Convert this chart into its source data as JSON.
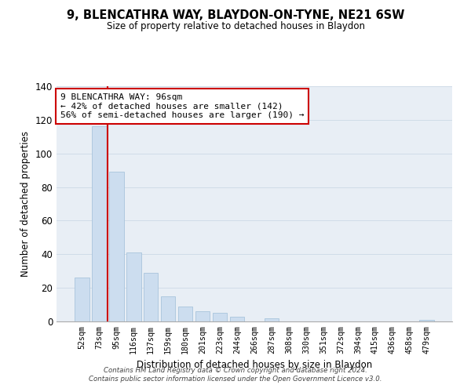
{
  "title": "9, BLENCATHRA WAY, BLAYDON-ON-TYNE, NE21 6SW",
  "subtitle": "Size of property relative to detached houses in Blaydon",
  "xlabel": "Distribution of detached houses by size in Blaydon",
  "ylabel": "Number of detached properties",
  "bar_labels": [
    "52sqm",
    "73sqm",
    "95sqm",
    "116sqm",
    "137sqm",
    "159sqm",
    "180sqm",
    "201sqm",
    "223sqm",
    "244sqm",
    "266sqm",
    "287sqm",
    "308sqm",
    "330sqm",
    "351sqm",
    "372sqm",
    "394sqm",
    "415sqm",
    "436sqm",
    "458sqm",
    "479sqm"
  ],
  "bar_values": [
    26,
    116,
    89,
    41,
    29,
    15,
    9,
    6,
    5,
    3,
    0,
    2,
    0,
    0,
    0,
    0,
    0,
    0,
    0,
    0,
    1
  ],
  "bar_color": "#ccddef",
  "bar_edge_color": "#a8c4dc",
  "vline_color": "#cc0000",
  "vline_x_index": 1.5,
  "ylim": [
    0,
    140
  ],
  "yticks": [
    0,
    20,
    40,
    60,
    80,
    100,
    120,
    140
  ],
  "annotation_title": "9 BLENCATHRA WAY: 96sqm",
  "annotation_line1": "← 42% of detached houses are smaller (142)",
  "annotation_line2": "56% of semi-detached houses are larger (190) →",
  "annotation_box_facecolor": "#ffffff",
  "annotation_box_edgecolor": "#cc0000",
  "footer_line1": "Contains HM Land Registry data © Crown copyright and database right 2024.",
  "footer_line2": "Contains public sector information licensed under the Open Government Licence v3.0.",
  "grid_color": "#d0dce8",
  "background_color": "#e8eef5"
}
